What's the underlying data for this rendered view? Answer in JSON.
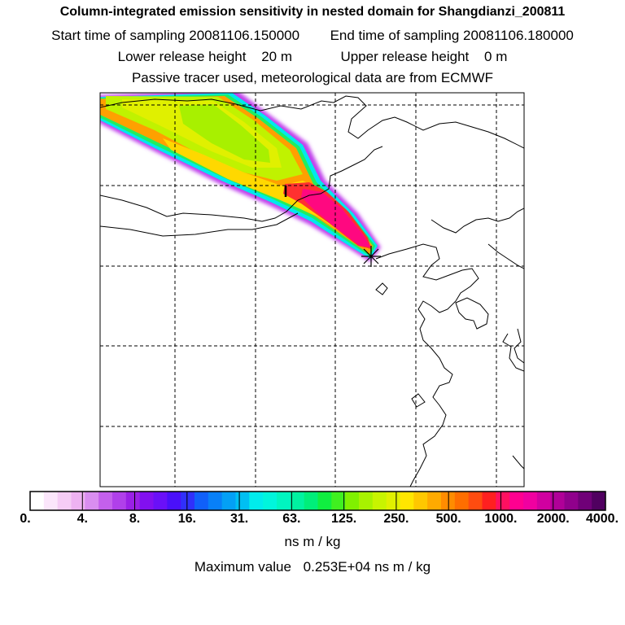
{
  "title": {
    "main": "Column-integrated emission sensitivity in nested domain for Shangdianzi_200811",
    "start_label": "Start time of sampling",
    "start_value": "20081106.150000",
    "end_label": "End time of sampling",
    "end_value": "20081106.180000",
    "lower_label": "Lower release height",
    "lower_value": "20 m",
    "upper_label": "Upper release height",
    "upper_value": "0 m",
    "tracer_note": "Passive tracer used, meteorological data are from ECMWF"
  },
  "chart_data": {
    "type": "heatmap",
    "description_units": "ns m / kg",
    "colorbar": {
      "tick_labels": [
        "0.",
        "4.",
        "8.",
        "16.",
        "31.",
        "63.",
        "125.",
        "250.",
        "500.",
        "1000.",
        "2000.",
        "4000."
      ],
      "colors": [
        "#ffffff",
        "#fbe6fb",
        "#f5ccf5",
        "#eeb2f2",
        "#d98ef0",
        "#c460ec",
        "#b040ea",
        "#9a20e6",
        "#8210f0",
        "#6a10f8",
        "#4a10fa",
        "#3030fb",
        "#1060fa",
        "#0880f8",
        "#04a0f5",
        "#00bff2",
        "#00ecec",
        "#00f5dc",
        "#00f5c0",
        "#00f2a0",
        "#00ee7a",
        "#10ee40",
        "#40f020",
        "#80f000",
        "#a8f200",
        "#c8f400",
        "#e0f000",
        "#ffe600",
        "#ffc800",
        "#ffaa00",
        "#ff8c00",
        "#ff6e00",
        "#ff4c10",
        "#ff2020",
        "#ff1060",
        "#ff0090",
        "#f000a0",
        "#d000a0",
        "#b00098",
        "#90008c",
        "#700078",
        "#500060"
      ]
    },
    "maximum_value_label": "Maximum value",
    "maximum_value": "0.253E+04",
    "maximum_value_units": "ns m / kg",
    "release_site": "Shangdianzi"
  }
}
